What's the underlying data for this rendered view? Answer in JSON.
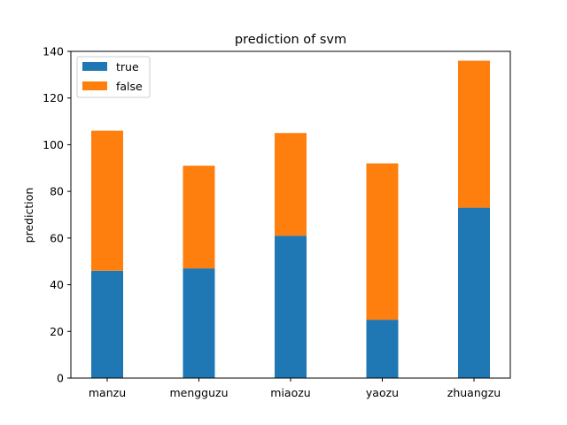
{
  "chart_data": {
    "type": "bar",
    "stacked": true,
    "title": "prediction of svm",
    "xlabel": "",
    "ylabel": "prediction",
    "categories": [
      "manzu",
      "mengguzu",
      "miaozu",
      "yaozu",
      "zhuangzu"
    ],
    "series": [
      {
        "name": "true",
        "color": "#1f77b4",
        "values": [
          46,
          47,
          61,
          25,
          73
        ]
      },
      {
        "name": "false",
        "color": "#ff7f0e",
        "values": [
          60,
          44,
          44,
          67,
          63
        ]
      }
    ],
    "ylim": [
      0,
      140
    ],
    "yticks": [
      0,
      20,
      40,
      60,
      80,
      100,
      120,
      140
    ],
    "grid": false,
    "legend_position": "top-left"
  }
}
